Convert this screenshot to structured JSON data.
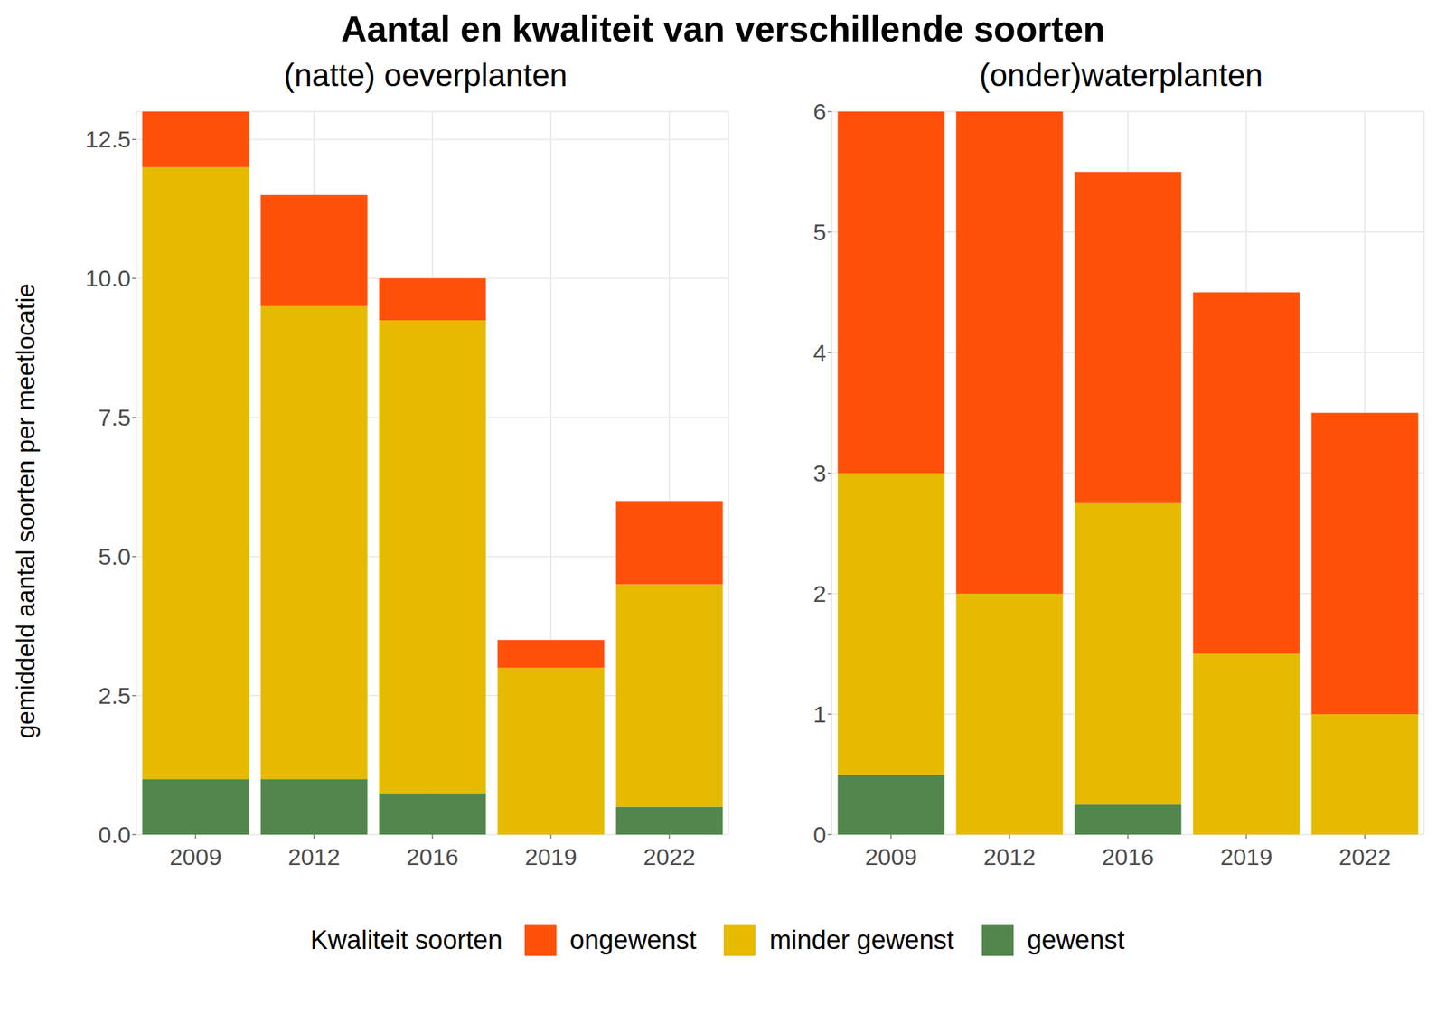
{
  "title": "Aantal en kwaliteit van verschillende soorten",
  "y_label": "gemiddeld aantal soorten per meetlocatie",
  "legend_title": "Kwaliteit soorten",
  "chart_data": [
    {
      "type": "bar",
      "title": "(natte) oeverplanten",
      "categories": [
        "2009",
        "2012",
        "2016",
        "2019",
        "2022"
      ],
      "series": [
        {
          "name": "ongewenst",
          "color": "#FF5009",
          "values": [
            1,
            2,
            0.75,
            0.5,
            1.5
          ]
        },
        {
          "name": "minder gewenst",
          "color": "#E6BA00",
          "values": [
            11,
            8.5,
            8.5,
            3,
            4
          ]
        },
        {
          "name": "gewenst",
          "color": "#52864C",
          "values": [
            1,
            1,
            0.75,
            0,
            0.5
          ]
        }
      ],
      "ylim": [
        0,
        13
      ],
      "yticks": [
        {
          "value": 0,
          "label": "0.0"
        },
        2.5,
        {
          "value": 5,
          "label": "5.0"
        },
        7.5,
        {
          "value": 10,
          "label": "10.0"
        },
        12.5
      ],
      "stacked": true,
      "grid": true
    },
    {
      "type": "bar",
      "title": "(onder)waterplanten",
      "categories": [
        "2009",
        "2012",
        "2016",
        "2019",
        "2022"
      ],
      "series": [
        {
          "name": "ongewenst",
          "color": "#FF5009",
          "values": [
            3,
            4,
            2.75,
            3,
            2.5
          ]
        },
        {
          "name": "minder gewenst",
          "color": "#E6BA00",
          "values": [
            2.5,
            2,
            2.5,
            1.5,
            1
          ]
        },
        {
          "name": "gewenst",
          "color": "#52864C",
          "values": [
            0.5,
            0,
            0.25,
            0,
            0
          ]
        }
      ],
      "ylim": [
        0,
        6
      ],
      "yticks": [
        0,
        1,
        2,
        3,
        4,
        5,
        6
      ],
      "stacked": true,
      "grid": true
    }
  ]
}
